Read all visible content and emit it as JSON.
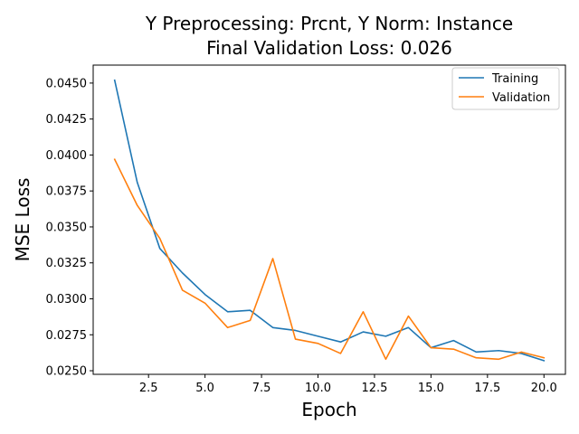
{
  "chart_data": {
    "type": "line",
    "title_line1": "Y Preprocessing: Prcnt, Y Norm: Instance",
    "title_line2": "Final Validation Loss: 0.026",
    "xlabel": "Epoch",
    "ylabel": "MSE Loss",
    "xlim": [
      0.05,
      20.95
    ],
    "ylim": [
      0.02475,
      0.04625
    ],
    "x_ticks": [
      2.5,
      5.0,
      7.5,
      10.0,
      12.5,
      15.0,
      17.5,
      20.0
    ],
    "x_tick_labels": [
      "2.5",
      "5.0",
      "7.5",
      "10.0",
      "12.5",
      "15.0",
      "17.5",
      "20.0"
    ],
    "y_ticks": [
      0.025,
      0.0275,
      0.03,
      0.0325,
      0.035,
      0.0375,
      0.04,
      0.0425,
      0.045
    ],
    "y_tick_labels": [
      "0.0250",
      "0.0275",
      "0.0300",
      "0.0325",
      "0.0350",
      "0.0375",
      "0.0400",
      "0.0425",
      "0.0450"
    ],
    "grid": false,
    "legend_position": "top-right",
    "x": [
      1,
      2,
      3,
      4,
      5,
      6,
      7,
      8,
      9,
      10,
      11,
      12,
      13,
      14,
      15,
      16,
      17,
      18,
      19,
      20
    ],
    "series": [
      {
        "name": "Training",
        "color": "#1f77b4",
        "values": [
          0.0452,
          0.0381,
          0.0335,
          0.0318,
          0.0303,
          0.0291,
          0.0292,
          0.028,
          0.0278,
          0.0274,
          0.027,
          0.0277,
          0.0274,
          0.028,
          0.0266,
          0.0271,
          0.0263,
          0.0264,
          0.0262,
          0.0257
        ]
      },
      {
        "name": "Validation",
        "color": "#ff7f0e",
        "values": [
          0.0397,
          0.0365,
          0.0342,
          0.0306,
          0.0297,
          0.028,
          0.0285,
          0.0328,
          0.0272,
          0.0269,
          0.0262,
          0.0291,
          0.0258,
          0.0288,
          0.0266,
          0.0265,
          0.0259,
          0.0258,
          0.0263,
          0.0259
        ]
      }
    ]
  }
}
